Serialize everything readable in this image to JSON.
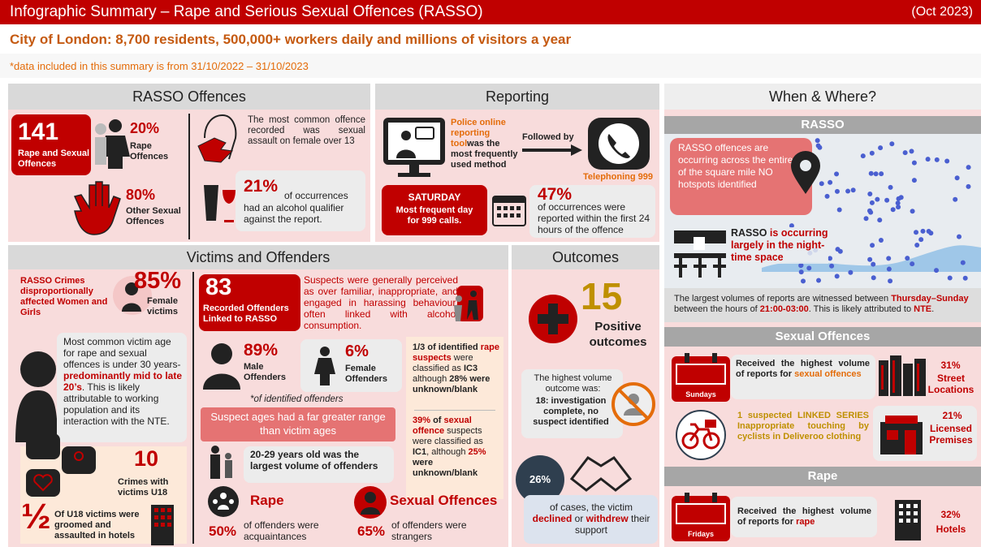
{
  "header": {
    "title": "Infographic Summary  – Rape and Serious Sexual Offences (RASSO)",
    "date": "(Oct 2023)",
    "subtitle": "City of London: 8,700 residents, 500,000+ workers daily and millions of visitors a year",
    "note": "*data included in this summary is from 31/10/2022  – 31/10/2023"
  },
  "rasso_offences": {
    "heading": "RASSO Offences",
    "total": "141",
    "total_label": "Rape and Sexual Offences",
    "rape_pct": "20%",
    "rape_label": "Rape Offences",
    "other_pct": "80%",
    "other_label": "Other Sexual Offences",
    "common": "The most common offence recorded was sexual assault on female over 13",
    "alcohol_pct": "21%",
    "alcohol_text": [
      "of occurrences",
      "had an alcohol qualifier against the report."
    ]
  },
  "reporting": {
    "heading": "Reporting",
    "online": [
      "Police online reporting tool",
      "was the most frequently used method"
    ],
    "followed": "Followed by",
    "phone": "Telephoning 999",
    "saturday": "SATURDAY",
    "saturday_text": "Most frequent day for 999 calls.",
    "pct": "47%",
    "pct_text": "of occurrences were reported within the first 24 hours of the offence"
  },
  "victims_offenders": {
    "heading": "Victims and Offenders",
    "crimes": "RASSO Crimes disproportionally affected Women and Girls",
    "female_pct": "85%",
    "female_label": "Female victims",
    "age": [
      "Most common victim age for rape and sexual offences is under 30 years-",
      "predominantly mid to late 20’s",
      ". This is likely attributable to working population and its interaction with the NTE."
    ],
    "u18_count": "10",
    "u18_label": "Crimes with victims U18",
    "half": "½",
    "half_text": "Of U18 victims were groomed and assaulted in hotels",
    "offenders": "83",
    "offenders_label": "Recorded Offenders Linked to RASSO",
    "suspects": "Suspects were generally perceived as over familiar, inappropriate, and engaged in harassing behaviour, often linked with alcohol consumption.",
    "male_pct": "89%",
    "male_label": "Male Offenders",
    "female_off_pct": "6%",
    "female_off_label": "Female Offenders",
    "identified_note": "*of identified offenders",
    "ages": "Suspect ages had a far greater range than victim ages",
    "largest": "20-29 years old was the largest volume of offenders",
    "class1": [
      "1/3",
      " of identified ",
      "rape suspects",
      " were classified as ",
      "IC3",
      " although ",
      "28%",
      " were unknown/blank"
    ],
    "class2": [
      "39%",
      " of ",
      "sexual offence",
      " suspects were classified as ",
      "IC1",
      ", although ",
      "25%",
      " were unknown/blank"
    ],
    "rape": "Rape",
    "rape_pct": "50%",
    "rape_text": "of offenders were acquaintances",
    "sexual": "Sexual Offences",
    "sexual_pct": "65%",
    "sexual_text": "of offenders were strangers"
  },
  "outcomes": {
    "heading": "Outcomes",
    "positive": "15",
    "positive_label": "Positive outcomes",
    "highest": "The highest volume outcome was:",
    "highest_value": "18: investigation complete, no suspect identified",
    "support_pct": "26%",
    "support": [
      "of cases, the victim ",
      "declined",
      " or ",
      "withdrew",
      " their support"
    ]
  },
  "when_where": {
    "heading": "When & Where?",
    "rasso": "RASSO",
    "map_text": [
      "RASSO",
      " offences are occurring across the entirety of the square mile NO hotspots identified"
    ],
    "night": [
      "RASSO",
      " is occurring largely in the night-time space"
    ],
    "largest": [
      "The largest volumes of reports are witnessed between ",
      "Thursday–Sunday",
      " between the hours of ",
      "21:00-03:00",
      ". This is likely attributed to ",
      "NTE",
      "."
    ],
    "sexual": "Sexual Offences",
    "sundays": "Sundays",
    "sexual_received": [
      "Received the highest volume of reports for ",
      "sexual offences"
    ],
    "street_pct": "31%",
    "street_label": "Street Locations",
    "linked": [
      "1 suspected LINKED SERIES",
      " Inappropriate touching by cyclists in Deliveroo clothing"
    ],
    "licensed_pct": "21%",
    "licensed_label": "Licensed Premises",
    "rape": "Rape",
    "fridays": "Fridays",
    "rape_received": [
      "Received the highest volume of reports for ",
      "rape"
    ],
    "hotels_pct": "32%",
    "hotels_label": "Hotels"
  }
}
